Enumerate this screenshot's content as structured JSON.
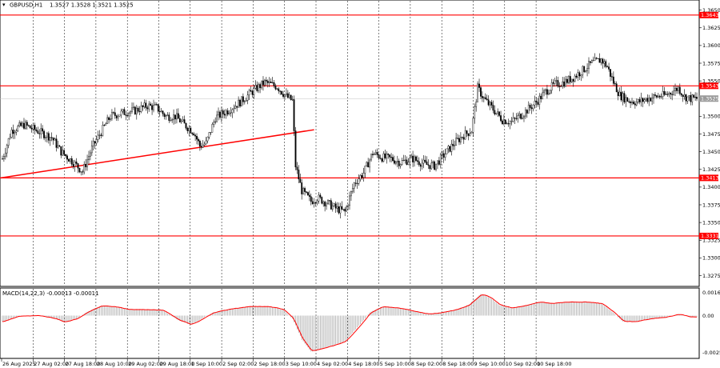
{
  "window": {
    "title": "GBPUSD,H1",
    "ohlc": "1.3527 1.3528 1.3521 1.3525"
  },
  "macd": {
    "title": "MACD(14,22,3) -0.00013 -0.00011",
    "ticks": [
      "0.00162",
      "0.00",
      "-0.00258"
    ]
  },
  "price_axis": {
    "ticks": [
      "1.3650",
      "1.3625",
      "1.3600",
      "1.3575",
      "1.3550",
      "1.3500",
      "1.3475",
      "1.3450",
      "1.3425",
      "1.3400",
      "1.3375",
      "1.3350",
      "1.3325",
      "1.3300",
      "1.3275"
    ]
  },
  "levels": [
    {
      "label": "1.3643",
      "value": 1.3643
    },
    {
      "label": "1.3543",
      "value": 1.3543
    },
    {
      "label": "1.3413",
      "value": 1.3413
    },
    {
      "label": "1.3331",
      "value": 1.3331
    }
  ],
  "current_price": {
    "label": "1.3525",
    "value": 1.3525
  },
  "time_axis": {
    "labels": [
      "26 Aug 2025",
      "27 Aug 02:00",
      "27 Aug 18:00",
      "28 Aug 10:00",
      "29 Aug 02:00",
      "29 Aug 18:00",
      "1 Sep 10:00",
      "2 Sep 02:00",
      "2 Sep 18:00",
      "3 Sep 10:00",
      "4 Sep 02:00",
      "4 Sep 18:00",
      "5 Sep 10:00",
      "8 Sep 02:00",
      "8 Sep 18:00",
      "9 Sep 10:00",
      "10 Sep 02:00",
      "10 Sep 18:00"
    ]
  },
  "colors": {
    "level_line": "#ff0000",
    "trend_line": "#ff0000",
    "candle": "#000000",
    "grid": "#000000",
    "macd_signal": "#ff0000",
    "macd_hist": "#a0a0a0"
  },
  "chart_data": {
    "type": "candlestick",
    "symbol": "GBPUSD",
    "timeframe": "H1",
    "ylim": [
      1.3262,
      1.3662
    ],
    "trend_line": {
      "from": [
        0,
        1.3413
      ],
      "to": [
        202,
        1.3481
      ]
    },
    "close_path": [
      [
        0,
        1.344
      ],
      [
        6,
        1.348
      ],
      [
        14,
        1.3488
      ],
      [
        24,
        1.3478
      ],
      [
        32,
        1.347
      ],
      [
        38,
        1.345
      ],
      [
        46,
        1.3435
      ],
      [
        52,
        1.3422
      ],
      [
        58,
        1.3455
      ],
      [
        64,
        1.3478
      ],
      [
        70,
        1.35
      ],
      [
        78,
        1.3505
      ],
      [
        86,
        1.3508
      ],
      [
        94,
        1.3515
      ],
      [
        100,
        1.3512
      ],
      [
        106,
        1.35
      ],
      [
        112,
        1.35
      ],
      [
        118,
        1.3488
      ],
      [
        124,
        1.3478
      ],
      [
        128,
        1.3458
      ],
      [
        132,
        1.3462
      ],
      [
        138,
        1.3498
      ],
      [
        146,
        1.3508
      ],
      [
        154,
        1.352
      ],
      [
        162,
        1.3535
      ],
      [
        170,
        1.3548
      ],
      [
        178,
        1.3542
      ],
      [
        184,
        1.3528
      ],
      [
        188,
        1.3522
      ],
      [
        190,
        1.343
      ],
      [
        194,
        1.3395
      ],
      [
        200,
        1.338
      ],
      [
        204,
        1.3385
      ],
      [
        210,
        1.3378
      ],
      [
        216,
        1.337
      ],
      [
        222,
        1.3365
      ],
      [
        228,
        1.3405
      ],
      [
        234,
        1.342
      ],
      [
        240,
        1.3448
      ],
      [
        246,
        1.3442
      ],
      [
        252,
        1.344
      ],
      [
        258,
        1.3435
      ],
      [
        266,
        1.344
      ],
      [
        274,
        1.3432
      ],
      [
        280,
        1.343
      ],
      [
        286,
        1.3445
      ],
      [
        292,
        1.346
      ],
      [
        298,
        1.3472
      ],
      [
        304,
        1.348
      ],
      [
        308,
        1.354
      ],
      [
        312,
        1.3525
      ],
      [
        318,
        1.351
      ],
      [
        324,
        1.3495
      ],
      [
        330,
        1.3492
      ],
      [
        338,
        1.3505
      ],
      [
        346,
        1.352
      ],
      [
        352,
        1.3535
      ],
      [
        358,
        1.3545
      ],
      [
        364,
        1.3548
      ],
      [
        370,
        1.3555
      ],
      [
        376,
        1.3565
      ],
      [
        382,
        1.3575
      ],
      [
        388,
        1.358
      ],
      [
        392,
        1.357
      ],
      [
        396,
        1.3548
      ],
      [
        400,
        1.353
      ],
      [
        406,
        1.3522
      ],
      [
        412,
        1.352
      ],
      [
        418,
        1.3525
      ],
      [
        424,
        1.3528
      ],
      [
        430,
        1.353
      ],
      [
        434,
        1.3535
      ],
      [
        438,
        1.354
      ],
      [
        442,
        1.3528
      ],
      [
        446,
        1.3525
      ],
      [
        450,
        1.3525
      ]
    ],
    "macd_range": [
      -0.00258,
      0.00162
    ],
    "macd_hist_path": [
      [
        0,
        -0.0004
      ],
      [
        10,
        -3e-05
      ],
      [
        24,
        0.0
      ],
      [
        34,
        -0.0002
      ],
      [
        40,
        -0.00045
      ],
      [
        48,
        -0.0002
      ],
      [
        56,
        0.0003
      ],
      [
        64,
        0.00065
      ],
      [
        72,
        0.0006
      ],
      [
        82,
        0.0004
      ],
      [
        92,
        0.0004
      ],
      [
        104,
        0.00035
      ],
      [
        114,
        -0.0003
      ],
      [
        122,
        -0.0006
      ],
      [
        128,
        -0.0003
      ],
      [
        136,
        0.0002
      ],
      [
        148,
        0.00045
      ],
      [
        160,
        0.0006
      ],
      [
        172,
        0.0006
      ],
      [
        182,
        0.0004
      ],
      [
        188,
        -0.0002
      ],
      [
        194,
        -0.0016
      ],
      [
        200,
        -0.0024
      ],
      [
        206,
        -0.0022
      ],
      [
        214,
        -0.002
      ],
      [
        222,
        -0.0017
      ],
      [
        230,
        -0.0008
      ],
      [
        238,
        0.0002
      ],
      [
        246,
        0.0006
      ],
      [
        256,
        0.0005
      ],
      [
        266,
        0.0003
      ],
      [
        276,
        0.0001
      ],
      [
        284,
        0.0002
      ],
      [
        294,
        0.0004
      ],
      [
        302,
        0.0007
      ],
      [
        310,
        0.00145
      ],
      [
        316,
        0.0012
      ],
      [
        322,
        0.0007
      ],
      [
        330,
        0.0005
      ],
      [
        340,
        0.0007
      ],
      [
        348,
        0.0009
      ],
      [
        356,
        0.0008
      ],
      [
        364,
        0.0009
      ],
      [
        372,
        0.0009
      ],
      [
        380,
        0.0009
      ],
      [
        388,
        0.0008
      ],
      [
        396,
        0.0002
      ],
      [
        402,
        -0.0004
      ],
      [
        410,
        -0.0004
      ],
      [
        420,
        -0.0002
      ],
      [
        430,
        -0.0001
      ],
      [
        438,
        0.0001
      ],
      [
        446,
        -0.0001
      ],
      [
        450,
        -0.0001
      ]
    ]
  }
}
